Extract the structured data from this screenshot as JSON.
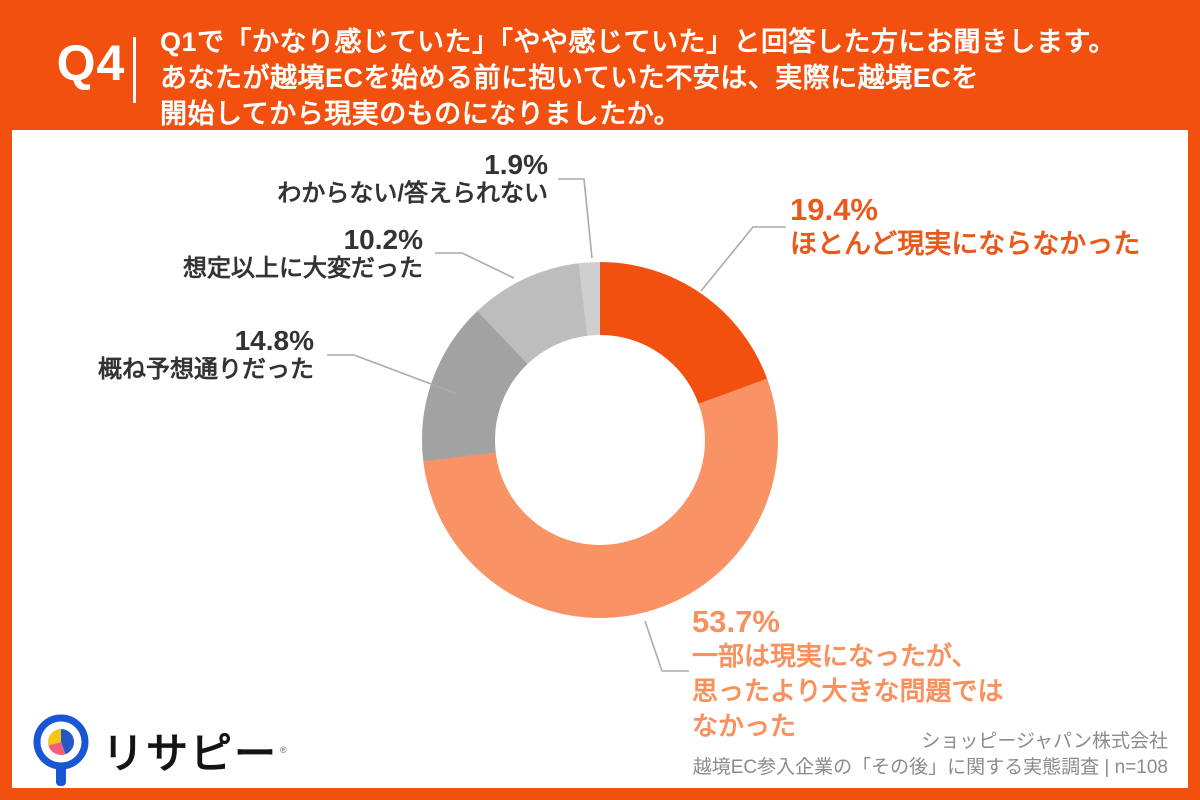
{
  "header": {
    "question_number": "Q4",
    "question_lines": [
      "Q1で「かなり感じていた」「やや感じていた」と回答した方にお聞きします。",
      "あなたが越境ECを始める前に抱いていた不安は、実際に越境ECを",
      "開始してから現実のものになりましたか。"
    ]
  },
  "chart_data": {
    "type": "pie",
    "donut": true,
    "start_angle_deg_clockwise_from_top": 0,
    "series": [
      {
        "label": "ほとんど現実にならなかった",
        "value": 19.4,
        "color": "#F2500F"
      },
      {
        "label": "一部は現実になったが、思ったより大きな問題ではなかった",
        "value": 53.7,
        "color": "#F99265"
      },
      {
        "label": "概ね予想通りだった",
        "value": 14.8,
        "color": "#A2A2A2"
      },
      {
        "label": "想定以上に大変だった",
        "value": 10.2,
        "color": "#BDBDBD"
      },
      {
        "label": "わからない/答えられない",
        "value": 1.9,
        "color": "#CFCFCF"
      }
    ],
    "total_n": 108,
    "legend_position": "callouts"
  },
  "callouts": {
    "s1": {
      "pct": "19.4%",
      "lines": [
        "ほとんど現実にならなかった"
      ]
    },
    "s2": {
      "pct": "53.7%",
      "lines": [
        "一部は現実になったが、",
        "思ったより大きな問題では",
        "なかった"
      ]
    },
    "s3": {
      "pct": "14.8%",
      "lines": [
        "概ね予想通りだった"
      ]
    },
    "s4": {
      "pct": "10.2%",
      "lines": [
        "想定以上に大変だった"
      ]
    },
    "s5": {
      "pct": "1.9%",
      "lines": [
        "わからない/答えられない"
      ]
    }
  },
  "colors": {
    "brand_orange": "#F2500F",
    "salmon": "#F99265",
    "gray_dark": "#A2A2A2",
    "gray_mid": "#BDBDBD",
    "gray_light": "#CFCFCF",
    "text_dark": "#333333",
    "footer_gray": "#8B8B8B",
    "logo_blue": "#1857D3"
  },
  "logo": {
    "text": "リサピー",
    "mark": "®"
  },
  "footer": {
    "company": "ショッピージャパン株式会社",
    "survey": "越境EC参入企業の「その後」に関する実態調査 | n=108"
  }
}
